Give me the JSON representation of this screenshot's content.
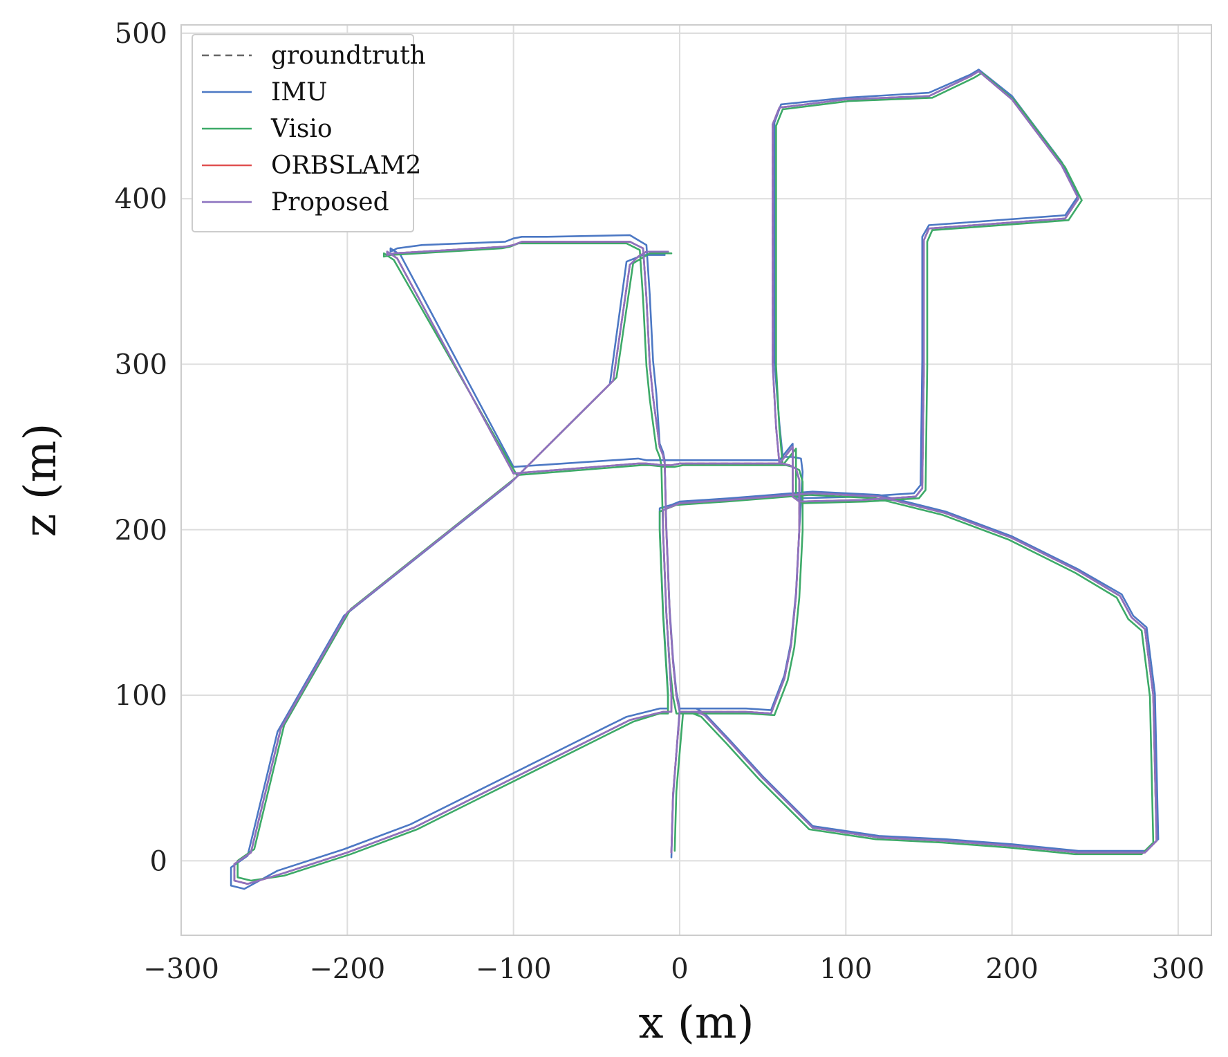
{
  "chart_data": {
    "type": "line",
    "title": "",
    "xlabel": "x (m)",
    "ylabel": "z (m)",
    "xlim": [
      -300,
      320
    ],
    "ylim": [
      -45,
      505
    ],
    "xticks": [
      -300,
      -200,
      -100,
      0,
      100,
      200,
      300
    ],
    "yticks": [
      0,
      100,
      200,
      300,
      400,
      500
    ],
    "x_tick_labels": [
      "−300",
      "−200",
      "−100",
      "0",
      "100",
      "200",
      "300"
    ],
    "y_tick_labels": [
      "0",
      "100",
      "200",
      "300",
      "400",
      "500"
    ],
    "grid": true,
    "legend_position": "top-left",
    "colors": {
      "groundtruth": "#666666",
      "IMU": "#4c78c4",
      "Visio": "#3daa68",
      "ORBSLAM2": "#e05050",
      "Proposed": "#8c72c0"
    },
    "series": [
      {
        "name": "groundtruth",
        "style": "dashed",
        "x": [
          -5,
          -4,
          0,
          40,
          55,
          63,
          67,
          70,
          72,
          72,
          70,
          66,
          62,
          60,
          58,
          56,
          56,
          60,
          100,
          150,
          175,
          180,
          200,
          230,
          240,
          232,
          150,
          147,
          147,
          146,
          142,
          110,
          72,
          68,
          68,
          60,
          0,
          -5,
          -8,
          -8,
          -10,
          -20,
          -25,
          -100,
          -170,
          -176,
          -176,
          -172,
          -155,
          -105,
          -100,
          -95,
          -80,
          -30,
          -22,
          -20,
          -19,
          -18,
          -16,
          -12,
          -10,
          -9,
          -8,
          -6,
          -4,
          -2,
          0,
          2,
          4,
          6,
          8,
          10,
          15,
          30,
          50,
          80,
          120,
          160,
          200,
          240,
          280,
          287,
          285,
          280,
          272,
          265,
          240,
          200,
          160,
          120,
          80,
          55,
          30,
          0,
          -5,
          -10,
          -10,
          -8,
          -5,
          -5,
          -10,
          -30,
          -40,
          -80,
          -120,
          -160,
          -200,
          -240,
          -260,
          -268,
          -268,
          -258,
          -240,
          -200,
          -100,
          -40,
          -30,
          -25,
          -20,
          -15,
          -12,
          -10,
          -7
        ],
        "y": [
          5,
          40,
          90,
          90,
          89,
          110,
          130,
          160,
          200,
          230,
          237,
          239,
          240,
          240,
          262,
          300,
          445,
          455,
          460,
          462,
          474,
          477,
          460,
          420,
          400,
          388,
          382,
          375,
          300,
          225,
          220,
          218,
          217,
          220,
          250,
          240,
          240,
          239,
          239,
          239,
          239,
          240,
          240,
          234,
          364,
          368,
          366,
          367,
          368,
          371,
          372,
          374,
          374,
          374,
          370,
          340,
          320,
          300,
          280,
          250,
          245,
          240,
          200,
          150,
          120,
          100,
          90,
          90,
          90,
          90,
          90,
          90,
          88,
          72,
          50,
          20,
          14,
          12,
          9,
          5,
          5,
          12,
          100,
          140,
          147,
          160,
          175,
          195,
          210,
          220,
          222,
          220,
          218,
          216,
          214,
          212,
          200,
          150,
          100,
          90,
          90,
          85,
          80,
          60,
          40,
          20,
          5,
          -8,
          -14,
          -12,
          -2,
          5,
          80,
          150,
          230,
          290,
          360,
          365,
          368,
          368,
          368,
          368,
          368
        ]
      },
      {
        "name": "IMU",
        "style": "solid",
        "x": [
          -5,
          -4,
          0,
          40,
          55,
          63,
          67,
          70,
          72,
          74,
          73,
          68,
          64,
          62,
          60,
          57,
          57,
          61,
          100,
          150,
          175,
          180,
          200,
          230,
          240,
          232,
          150,
          146,
          146,
          145,
          141,
          110,
          72,
          68,
          68,
          60,
          0,
          -5,
          -8,
          -8,
          -10,
          -20,
          -25,
          -100,
          -168,
          -174,
          -174,
          -170,
          -155,
          -105,
          -100,
          -95,
          -80,
          -30,
          -20,
          -18,
          -17,
          -16,
          -14,
          -12,
          -10,
          -9,
          -8,
          -6,
          -4,
          -2,
          0,
          2,
          4,
          6,
          8,
          10,
          15,
          30,
          50,
          80,
          120,
          160,
          200,
          240,
          280,
          288,
          286,
          281,
          273,
          266,
          240,
          200,
          160,
          120,
          80,
          55,
          30,
          0,
          -5,
          -12,
          -12,
          -10,
          -7,
          -7,
          -12,
          -32,
          -42,
          -82,
          -122,
          -162,
          -202,
          -242,
          -262,
          -270,
          -270,
          -260,
          -242,
          -202,
          -102,
          -42,
          -32,
          -27,
          -22,
          -17,
          -14,
          -12,
          -9
        ],
        "y": [
          2,
          38,
          92,
          92,
          91,
          112,
          132,
          162,
          200,
          235,
          243,
          244,
          244,
          244,
          264,
          302,
          446,
          457,
          461,
          464,
          475,
          478,
          462,
          422,
          402,
          390,
          384,
          377,
          302,
          227,
          222,
          220,
          219,
          222,
          252,
          242,
          242,
          242,
          242,
          242,
          242,
          242,
          243,
          238,
          366,
          370,
          368,
          370,
          372,
          374,
          376,
          377,
          377,
          378,
          372,
          342,
          322,
          302,
          282,
          252,
          247,
          242,
          202,
          152,
          122,
          102,
          92,
          92,
          92,
          92,
          92,
          92,
          89,
          73,
          51,
          21,
          15,
          13,
          10,
          6,
          6,
          13,
          101,
          141,
          148,
          161,
          176,
          196,
          211,
          221,
          223,
          221,
          219,
          217,
          215,
          213,
          201,
          151,
          101,
          92,
          92,
          87,
          82,
          62,
          42,
          22,
          7,
          -6,
          -17,
          -15,
          -4,
          3,
          78,
          148,
          228,
          288,
          362,
          364,
          366,
          366,
          366,
          366,
          366
        ]
      },
      {
        "name": "Visio",
        "style": "solid",
        "x": [
          -3,
          -2,
          2,
          42,
          57,
          65,
          69,
          72,
          74,
          74,
          72,
          68,
          64,
          62,
          60,
          58,
          58,
          62,
          102,
          152,
          177,
          182,
          202,
          232,
          242,
          234,
          152,
          149,
          149,
          148,
          144,
          112,
          74,
          70,
          70,
          62,
          2,
          -3,
          -6,
          -6,
          -8,
          -18,
          -23,
          -98,
          -172,
          -178,
          -178,
          -174,
          -157,
          -107,
          -102,
          -97,
          -82,
          -32,
          -24,
          -22,
          -21,
          -20,
          -18,
          -14,
          -12,
          -11,
          -10,
          -8,
          -6,
          -4,
          -2,
          0,
          2,
          4,
          6,
          8,
          13,
          28,
          48,
          78,
          118,
          158,
          198,
          238,
          278,
          285,
          283,
          278,
          270,
          263,
          238,
          198,
          158,
          118,
          78,
          53,
          28,
          -2,
          -7,
          -12,
          -12,
          -10,
          -7,
          -7,
          -12,
          -28,
          -38,
          -78,
          -118,
          -158,
          -198,
          -238,
          -258,
          -266,
          -266,
          -256,
          -238,
          -198,
          -98,
          -38,
          -28,
          -23,
          -18,
          -13,
          -10,
          -8,
          -5
        ],
        "y": [
          6,
          42,
          89,
          89,
          88,
          109,
          129,
          159,
          199,
          229,
          236,
          238,
          239,
          239,
          261,
          299,
          444,
          454,
          459,
          461,
          473,
          476,
          459,
          419,
          399,
          387,
          381,
          374,
          299,
          224,
          219,
          217,
          216,
          219,
          249,
          239,
          239,
          238,
          238,
          238,
          238,
          239,
          239,
          233,
          363,
          367,
          365,
          366,
          367,
          370,
          371,
          373,
          373,
          373,
          369,
          339,
          319,
          299,
          279,
          249,
          244,
          239,
          199,
          149,
          119,
          99,
          89,
          89,
          89,
          89,
          89,
          89,
          87,
          71,
          49,
          19,
          13,
          11,
          8,
          4,
          4,
          11,
          99,
          139,
          146,
          159,
          174,
          194,
          209,
          219,
          221,
          219,
          217,
          215,
          213,
          211,
          199,
          149,
          99,
          89,
          89,
          84,
          79,
          59,
          39,
          19,
          4,
          -9,
          -12,
          -10,
          0,
          7,
          82,
          152,
          232,
          292,
          361,
          364,
          367,
          367,
          367,
          367,
          367
        ]
      },
      {
        "name": "ORBSLAM2",
        "style": "solid",
        "x": [
          -5,
          -4,
          0,
          40,
          55,
          63,
          67,
          70,
          72,
          72,
          70,
          66,
          62,
          60,
          58,
          56,
          56,
          60,
          100,
          150,
          175,
          180,
          200,
          230,
          240,
          232,
          150,
          147,
          147,
          146,
          142,
          110,
          72,
          68,
          68,
          60,
          0,
          -5,
          -8,
          -8,
          -10,
          -20,
          -25,
          -100,
          -170,
          -176,
          -176,
          -172,
          -155,
          -105,
          -100,
          -95,
          -80,
          -30,
          -22,
          -20,
          -19,
          -18,
          -16,
          -12,
          -10,
          -9,
          -8,
          -6,
          -4,
          -2,
          0,
          2,
          4,
          6,
          8,
          10,
          15,
          30,
          50,
          80,
          120,
          160,
          200,
          240,
          280,
          287,
          285,
          280,
          272,
          265,
          240,
          200,
          160,
          120,
          80,
          55,
          30,
          0,
          -5,
          -10,
          -10,
          -8,
          -5,
          -5,
          -10,
          -30,
          -40,
          -80,
          -120,
          -160,
          -200,
          -240,
          -260,
          -268,
          -268,
          -258,
          -240,
          -200,
          -100,
          -40,
          -30,
          -25,
          -20,
          -15,
          -12,
          -10,
          -7
        ],
        "y": [
          5,
          40,
          90,
          90,
          89,
          110,
          130,
          160,
          200,
          230,
          237,
          239,
          240,
          240,
          262,
          300,
          445,
          455,
          460,
          462,
          474,
          477,
          460,
          420,
          400,
          388,
          382,
          375,
          300,
          225,
          220,
          218,
          217,
          220,
          250,
          240,
          240,
          239,
          239,
          239,
          239,
          240,
          240,
          234,
          364,
          368,
          366,
          367,
          368,
          371,
          372,
          374,
          374,
          374,
          370,
          340,
          320,
          300,
          280,
          250,
          245,
          240,
          200,
          150,
          120,
          100,
          90,
          90,
          90,
          90,
          90,
          90,
          88,
          72,
          50,
          20,
          14,
          12,
          9,
          5,
          5,
          12,
          100,
          140,
          147,
          160,
          175,
          195,
          210,
          220,
          222,
          220,
          218,
          216,
          214,
          212,
          200,
          150,
          100,
          90,
          90,
          85,
          80,
          60,
          40,
          20,
          5,
          -8,
          -14,
          -12,
          -2,
          5,
          80,
          150,
          230,
          290,
          360,
          365,
          368,
          368,
          368,
          368,
          368
        ]
      },
      {
        "name": "Proposed",
        "style": "solid",
        "x": [
          -5,
          -4,
          0,
          40,
          55,
          63,
          67,
          70,
          72,
          72,
          70,
          66,
          62,
          60,
          58,
          56,
          56,
          60,
          100,
          150,
          175,
          180,
          200,
          230,
          240,
          232,
          150,
          147,
          147,
          146,
          142,
          110,
          72,
          68,
          68,
          60,
          0,
          -5,
          -8,
          -8,
          -10,
          -20,
          -25,
          -100,
          -170,
          -176,
          -176,
          -172,
          -155,
          -105,
          -100,
          -95,
          -80,
          -30,
          -22,
          -20,
          -19,
          -18,
          -16,
          -12,
          -10,
          -9,
          -8,
          -6,
          -4,
          -2,
          0,
          2,
          4,
          6,
          8,
          10,
          15,
          30,
          50,
          80,
          120,
          160,
          200,
          240,
          280,
          287,
          285,
          280,
          272,
          265,
          240,
          200,
          160,
          120,
          80,
          55,
          30,
          0,
          -5,
          -10,
          -10,
          -8,
          -5,
          -5,
          -10,
          -30,
          -40,
          -80,
          -120,
          -160,
          -200,
          -240,
          -260,
          -268,
          -268,
          -258,
          -240,
          -200,
          -100,
          -40,
          -30,
          -25,
          -20,
          -15,
          -12,
          -10,
          -7
        ],
        "y": [
          5,
          40,
          90,
          90,
          89,
          110,
          130,
          160,
          200,
          230,
          237,
          239,
          240,
          240,
          262,
          300,
          445,
          455,
          460,
          462,
          474,
          477,
          460,
          420,
          400,
          388,
          382,
          375,
          300,
          225,
          220,
          218,
          217,
          220,
          250,
          240,
          240,
          239,
          239,
          239,
          239,
          240,
          240,
          234,
          364,
          368,
          366,
          367,
          368,
          371,
          372,
          374,
          374,
          374,
          370,
          340,
          320,
          300,
          280,
          250,
          245,
          240,
          200,
          150,
          120,
          100,
          90,
          90,
          90,
          90,
          90,
          90,
          88,
          72,
          50,
          20,
          14,
          12,
          9,
          5,
          5,
          12,
          100,
          140,
          147,
          160,
          175,
          195,
          210,
          220,
          222,
          220,
          218,
          216,
          214,
          212,
          200,
          150,
          100,
          90,
          90,
          85,
          80,
          60,
          40,
          20,
          5,
          -8,
          -14,
          -12,
          -2,
          5,
          80,
          150,
          230,
          290,
          360,
          365,
          368,
          368,
          368,
          368,
          368
        ]
      }
    ]
  }
}
